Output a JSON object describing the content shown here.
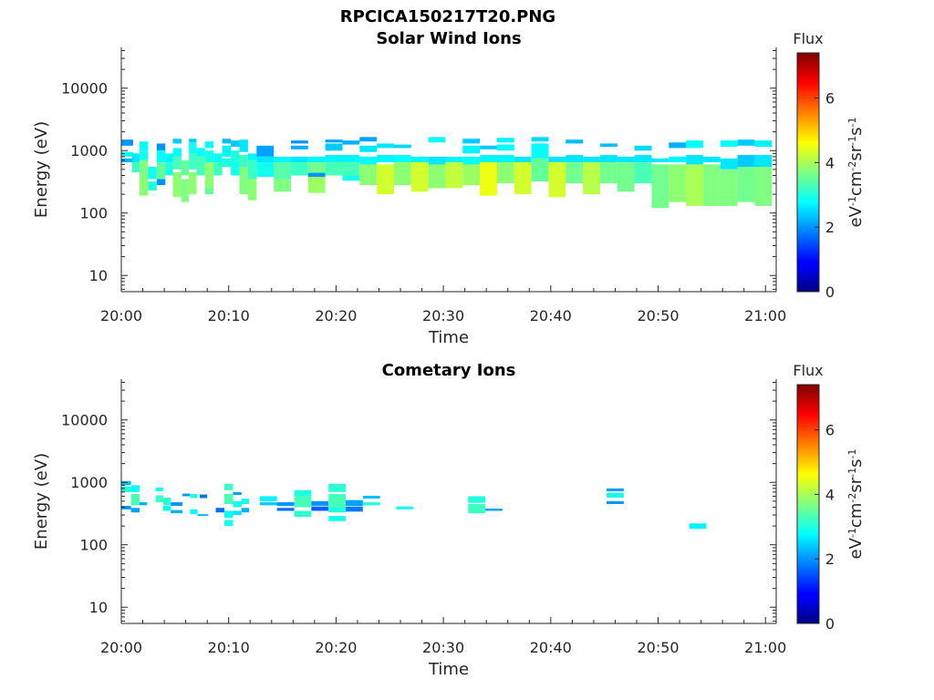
{
  "figure_title": "RPCICA150217T20.PNG",
  "chart_data": [
    {
      "type": "heatmap",
      "title": "Solar Wind Ions",
      "xlabel": "Time",
      "ylabel": "Energy (eV)",
      "x_ticks": [
        "20:00",
        "20:10",
        "20:20",
        "20:30",
        "20:40",
        "20:50",
        "21:00"
      ],
      "x_range_minutes": [
        0,
        61
      ],
      "y_scale": "log",
      "y_ticks": [
        "10",
        "100",
        "1000",
        "10000"
      ],
      "y_range": [
        5.5,
        45000
      ],
      "colorbar": {
        "title": "Flux",
        "unit": "eV-1cm-2sr-1s-1",
        "range": [
          0,
          7.4
        ],
        "ticks": [
          "0",
          "2",
          "4",
          "6"
        ]
      },
      "cells": [
        [
          0,
          1.1,
          1200,
          1500,
          2.0
        ],
        [
          0,
          1.1,
          800,
          950,
          2.8
        ],
        [
          0,
          1.1,
          650,
          750,
          2.2
        ],
        [
          1,
          1.8,
          650,
          900,
          2.6
        ],
        [
          1,
          1.8,
          450,
          650,
          3.2
        ],
        [
          1.7,
          2.5,
          1000,
          1400,
          2.8
        ],
        [
          1.7,
          2.5,
          700,
          1000,
          2.9
        ],
        [
          1.7,
          2.5,
          350,
          700,
          3.7
        ],
        [
          1.7,
          2.5,
          190,
          350,
          3.8
        ],
        [
          2.5,
          3.3,
          350,
          550,
          2.9
        ],
        [
          2.5,
          3.3,
          230,
          320,
          3.0
        ],
        [
          3.3,
          4.1,
          1000,
          1300,
          2.0
        ],
        [
          3.3,
          4.1,
          650,
          1000,
          2.8
        ],
        [
          3.3,
          4.1,
          350,
          650,
          3.5
        ],
        [
          3.3,
          4.1,
          280,
          350,
          2.0
        ],
        [
          4.1,
          4.8,
          650,
          900,
          2.7
        ],
        [
          4.1,
          4.8,
          400,
          650,
          3.0
        ],
        [
          4.8,
          5.6,
          1300,
          1550,
          2.4
        ],
        [
          4.8,
          5.6,
          800,
          1100,
          2.8
        ],
        [
          4.8,
          5.6,
          500,
          800,
          3.3
        ],
        [
          4.8,
          5.6,
          180,
          450,
          3.8
        ],
        [
          5.6,
          6.3,
          400,
          700,
          3.5
        ],
        [
          5.6,
          6.3,
          150,
          350,
          3.7
        ],
        [
          6.3,
          7.0,
          1350,
          1550,
          2.4
        ],
        [
          6.3,
          7.0,
          900,
          1350,
          2.9
        ],
        [
          6.3,
          7.0,
          500,
          900,
          3.2
        ],
        [
          6.3,
          7.0,
          200,
          450,
          3.8
        ],
        [
          7.0,
          7.8,
          800,
          1100,
          2.8
        ],
        [
          7.0,
          7.8,
          400,
          800,
          3.3
        ],
        [
          7.8,
          8.6,
          1100,
          1400,
          2.8
        ],
        [
          7.8,
          8.6,
          650,
          1000,
          2.9
        ],
        [
          7.8,
          8.6,
          250,
          650,
          3.8
        ],
        [
          7.8,
          8.6,
          200,
          250,
          3.5
        ],
        [
          8.6,
          9.4,
          650,
          900,
          2.8
        ],
        [
          8.6,
          9.4,
          400,
          650,
          3.2
        ],
        [
          9.4,
          10.2,
          1300,
          1550,
          2.3
        ],
        [
          9.4,
          10.2,
          800,
          1200,
          2.7
        ],
        [
          9.4,
          10.2,
          550,
          750,
          3.0
        ],
        [
          10.2,
          11.0,
          1150,
          1450,
          2.4
        ],
        [
          10.2,
          11.0,
          650,
          1000,
          3.0
        ],
        [
          10.2,
          11.0,
          400,
          650,
          2.9
        ],
        [
          11.0,
          11.8,
          950,
          1500,
          2.6
        ],
        [
          11.0,
          11.8,
          550,
          850,
          3.2
        ],
        [
          11.0,
          11.8,
          200,
          550,
          3.7
        ],
        [
          11.8,
          12.6,
          700,
          900,
          2.7
        ],
        [
          11.8,
          12.6,
          350,
          700,
          3.2
        ],
        [
          11.8,
          12.6,
          160,
          350,
          3.8
        ],
        [
          12.6,
          14.2,
          800,
          1200,
          2.1
        ],
        [
          12.6,
          14.2,
          650,
          800,
          2.6
        ],
        [
          12.6,
          14.2,
          380,
          650,
          2.9
        ],
        [
          14.2,
          15.8,
          650,
          800,
          2.7
        ],
        [
          14.2,
          15.8,
          350,
          650,
          3.4
        ],
        [
          14.2,
          15.8,
          220,
          350,
          3.7
        ],
        [
          15.8,
          17.4,
          1300,
          1450,
          2.0
        ],
        [
          15.8,
          17.4,
          1050,
          1200,
          2.2
        ],
        [
          15.8,
          17.4,
          650,
          800,
          2.6
        ],
        [
          15.8,
          17.4,
          400,
          650,
          3.2
        ],
        [
          17.4,
          19.0,
          650,
          800,
          2.7
        ],
        [
          17.4,
          19.0,
          400,
          650,
          3.6
        ],
        [
          17.4,
          19.0,
          210,
          400,
          3.9
        ],
        [
          17.4,
          19.0,
          380,
          440,
          2.0
        ],
        [
          19.0,
          20.6,
          1350,
          1500,
          2.1
        ],
        [
          19.0,
          20.6,
          1000,
          1300,
          2.4
        ],
        [
          19.0,
          20.6,
          650,
          850,
          2.7
        ],
        [
          19.0,
          20.6,
          400,
          650,
          3.3
        ],
        [
          20.6,
          22.2,
          1250,
          1450,
          2.2
        ],
        [
          20.6,
          22.2,
          650,
          850,
          2.7
        ],
        [
          20.6,
          22.2,
          400,
          650,
          3.3
        ],
        [
          20.6,
          22.2,
          330,
          400,
          2.9
        ],
        [
          22.2,
          23.8,
          1400,
          1650,
          2.1
        ],
        [
          22.2,
          23.8,
          950,
          1200,
          2.6
        ],
        [
          22.2,
          23.8,
          600,
          800,
          2.8
        ],
        [
          22.2,
          23.8,
          280,
          600,
          3.8
        ],
        [
          23.8,
          25.4,
          1100,
          1300,
          2.6
        ],
        [
          23.8,
          25.4,
          650,
          850,
          2.7
        ],
        [
          23.8,
          25.4,
          200,
          600,
          4.3
        ],
        [
          25.4,
          27.0,
          1100,
          1250,
          2.5
        ],
        [
          25.4,
          27.0,
          650,
          850,
          2.8
        ],
        [
          25.4,
          27.0,
          280,
          650,
          3.8
        ],
        [
          27.0,
          28.6,
          650,
          800,
          2.7
        ],
        [
          27.0,
          28.6,
          220,
          650,
          4.3
        ],
        [
          28.6,
          30.2,
          1350,
          1650,
          2.8
        ],
        [
          28.6,
          30.2,
          600,
          800,
          2.6
        ],
        [
          28.6,
          30.2,
          250,
          600,
          3.8
        ],
        [
          30.2,
          31.8,
          650,
          800,
          2.7
        ],
        [
          30.2,
          31.8,
          250,
          650,
          4.2
        ],
        [
          31.8,
          33.4,
          1300,
          1550,
          2.4
        ],
        [
          31.8,
          33.4,
          900,
          1200,
          2.7
        ],
        [
          31.8,
          33.4,
          600,
          800,
          2.8
        ],
        [
          31.8,
          33.4,
          280,
          600,
          3.9
        ],
        [
          33.4,
          35.0,
          1050,
          1200,
          2.4
        ],
        [
          33.4,
          35.0,
          650,
          850,
          2.7
        ],
        [
          33.4,
          35.0,
          190,
          650,
          4.5
        ],
        [
          35.0,
          36.6,
          1350,
          1600,
          2.7
        ],
        [
          35.0,
          36.6,
          1000,
          1250,
          2.8
        ],
        [
          35.0,
          36.6,
          650,
          850,
          2.7
        ],
        [
          35.0,
          36.6,
          300,
          650,
          3.8
        ],
        [
          36.6,
          38.2,
          650,
          800,
          2.6
        ],
        [
          36.6,
          38.2,
          200,
          650,
          4.3
        ],
        [
          38.2,
          39.8,
          1400,
          1650,
          2.5
        ],
        [
          38.2,
          39.8,
          750,
          1300,
          2.8
        ],
        [
          38.2,
          39.8,
          320,
          750,
          3.5
        ],
        [
          39.8,
          41.4,
          650,
          800,
          2.6
        ],
        [
          39.8,
          41.4,
          180,
          650,
          4.3
        ],
        [
          41.4,
          43.0,
          1300,
          1500,
          2.3
        ],
        [
          41.4,
          43.0,
          650,
          850,
          2.6
        ],
        [
          41.4,
          43.0,
          300,
          650,
          3.6
        ],
        [
          43.0,
          44.6,
          650,
          800,
          2.6
        ],
        [
          43.0,
          44.6,
          200,
          650,
          4.1
        ],
        [
          44.6,
          46.2,
          1150,
          1300,
          2.3
        ],
        [
          44.6,
          46.2,
          650,
          850,
          2.6
        ],
        [
          44.6,
          46.2,
          300,
          650,
          3.6
        ],
        [
          46.2,
          47.8,
          650,
          800,
          2.6
        ],
        [
          46.2,
          47.8,
          220,
          650,
          3.6
        ],
        [
          47.8,
          49.4,
          1000,
          1200,
          2.5
        ],
        [
          47.8,
          49.4,
          650,
          850,
          2.6
        ],
        [
          47.8,
          49.4,
          300,
          650,
          3.3
        ],
        [
          49.4,
          51.0,
          650,
          750,
          2.6
        ],
        [
          49.4,
          51.0,
          120,
          600,
          3.6
        ],
        [
          51.0,
          52.6,
          1100,
          1350,
          2.2
        ],
        [
          51.0,
          52.6,
          650,
          800,
          2.7
        ],
        [
          51.0,
          52.6,
          150,
          600,
          3.8
        ],
        [
          52.6,
          54.2,
          1100,
          1450,
          2.8
        ],
        [
          52.6,
          54.2,
          600,
          850,
          2.6
        ],
        [
          52.6,
          54.2,
          130,
          600,
          4.0
        ],
        [
          54.2,
          55.8,
          650,
          800,
          2.6
        ],
        [
          54.2,
          55.8,
          130,
          600,
          3.7
        ],
        [
          55.8,
          57.4,
          1150,
          1450,
          2.8
        ],
        [
          55.8,
          57.4,
          500,
          750,
          2.6
        ],
        [
          55.8,
          57.4,
          130,
          500,
          3.7
        ],
        [
          57.4,
          59.0,
          1200,
          1500,
          2.4
        ],
        [
          57.4,
          59.0,
          550,
          850,
          2.4
        ],
        [
          57.4,
          59.0,
          150,
          550,
          3.6
        ],
        [
          59.0,
          60.6,
          1150,
          1450,
          2.7
        ],
        [
          59.0,
          60.6,
          550,
          850,
          2.6
        ],
        [
          59.0,
          60.6,
          130,
          550,
          3.7
        ]
      ]
    },
    {
      "type": "heatmap",
      "title": "Cometary Ions",
      "xlabel": "Time",
      "ylabel": "Energy (eV)",
      "x_ticks": [
        "20:00",
        "20:10",
        "20:20",
        "20:30",
        "20:40",
        "20:50",
        "21:00"
      ],
      "x_range_minutes": [
        0,
        61
      ],
      "y_scale": "log",
      "y_ticks": [
        "10",
        "100",
        "1000",
        "10000"
      ],
      "y_range": [
        5.5,
        45000
      ],
      "colorbar": {
        "title": "Flux",
        "unit": "eV-1cm-2sr-1s-1",
        "range": [
          0,
          7.4
        ],
        "ticks": [
          "0",
          "2",
          "4",
          "6"
        ]
      },
      "cells": [
        [
          0,
          0.9,
          900,
          1050,
          2.3
        ],
        [
          0,
          0.9,
          700,
          850,
          3.0
        ],
        [
          0,
          0.9,
          370,
          420,
          2.0
        ],
        [
          0.9,
          1.7,
          700,
          900,
          2.8
        ],
        [
          0.9,
          1.7,
          430,
          650,
          3.3
        ],
        [
          0.9,
          1.7,
          330,
          390,
          2.1
        ],
        [
          1.7,
          2.4,
          430,
          480,
          2.2
        ],
        [
          3.2,
          3.9,
          720,
          830,
          2.9
        ],
        [
          3.2,
          3.9,
          480,
          620,
          3.2
        ],
        [
          3.9,
          4.6,
          430,
          570,
          3.1
        ],
        [
          3.9,
          4.6,
          350,
          420,
          2.8
        ],
        [
          4.6,
          5.7,
          320,
          360,
          2.2
        ],
        [
          4.6,
          5.7,
          420,
          480,
          2.0
        ],
        [
          5.7,
          6.4,
          600,
          660,
          2.0
        ],
        [
          6.4,
          7.1,
          560,
          650,
          3.0
        ],
        [
          6.4,
          7.1,
          310,
          370,
          2.8
        ],
        [
          7.1,
          8.1,
          290,
          310,
          2.3
        ],
        [
          7.3,
          8.0,
          560,
          640,
          1.8
        ],
        [
          8.8,
          9.6,
          330,
          390,
          1.7
        ],
        [
          9.6,
          10.4,
          750,
          950,
          3.2
        ],
        [
          9.6,
          10.4,
          450,
          650,
          3.3
        ],
        [
          9.6,
          10.4,
          270,
          350,
          2.8
        ],
        [
          9.6,
          10.4,
          200,
          250,
          2.9
        ],
        [
          10.4,
          11.2,
          630,
          700,
          2.1
        ],
        [
          10.4,
          11.2,
          400,
          500,
          2.9
        ],
        [
          10.4,
          11.2,
          300,
          350,
          2.6
        ],
        [
          11.2,
          11.9,
          450,
          550,
          2.9
        ],
        [
          11.2,
          11.9,
          330,
          390,
          2.2
        ],
        [
          12.9,
          14.5,
          500,
          600,
          2.7
        ],
        [
          12.9,
          14.5,
          430,
          480,
          2.4
        ],
        [
          14.5,
          16.1,
          420,
          480,
          2.0
        ],
        [
          14.5,
          16.1,
          350,
          390,
          1.7
        ],
        [
          16.1,
          17.7,
          600,
          750,
          3.0
        ],
        [
          16.1,
          17.7,
          400,
          600,
          3.3
        ],
        [
          16.1,
          17.7,
          280,
          350,
          3.1
        ],
        [
          17.7,
          19.3,
          420,
          500,
          2.0
        ],
        [
          17.7,
          19.3,
          350,
          410,
          1.6
        ],
        [
          19.3,
          20.9,
          700,
          950,
          3.1
        ],
        [
          19.3,
          20.9,
          400,
          650,
          3.3
        ],
        [
          19.3,
          20.9,
          330,
          400,
          3.0
        ],
        [
          19.3,
          20.9,
          240,
          290,
          2.9
        ],
        [
          20.9,
          22.5,
          420,
          520,
          2.1
        ],
        [
          20.9,
          22.5,
          340,
          410,
          1.8
        ],
        [
          22.5,
          24.1,
          550,
          610,
          2.3
        ],
        [
          22.5,
          24.1,
          430,
          480,
          3.0
        ],
        [
          25.6,
          27.2,
          370,
          410,
          2.8
        ],
        [
          32.3,
          33.9,
          470,
          600,
          3.0
        ],
        [
          32.3,
          33.9,
          320,
          450,
          3.2
        ],
        [
          33.9,
          35.5,
          350,
          380,
          2.1
        ],
        [
          45.2,
          46.8,
          720,
          800,
          2.1
        ],
        [
          45.2,
          46.8,
          570,
          680,
          2.9
        ],
        [
          45.2,
          46.8,
          450,
          500,
          2.0
        ],
        [
          52.9,
          54.5,
          180,
          220,
          2.7
        ]
      ]
    }
  ]
}
